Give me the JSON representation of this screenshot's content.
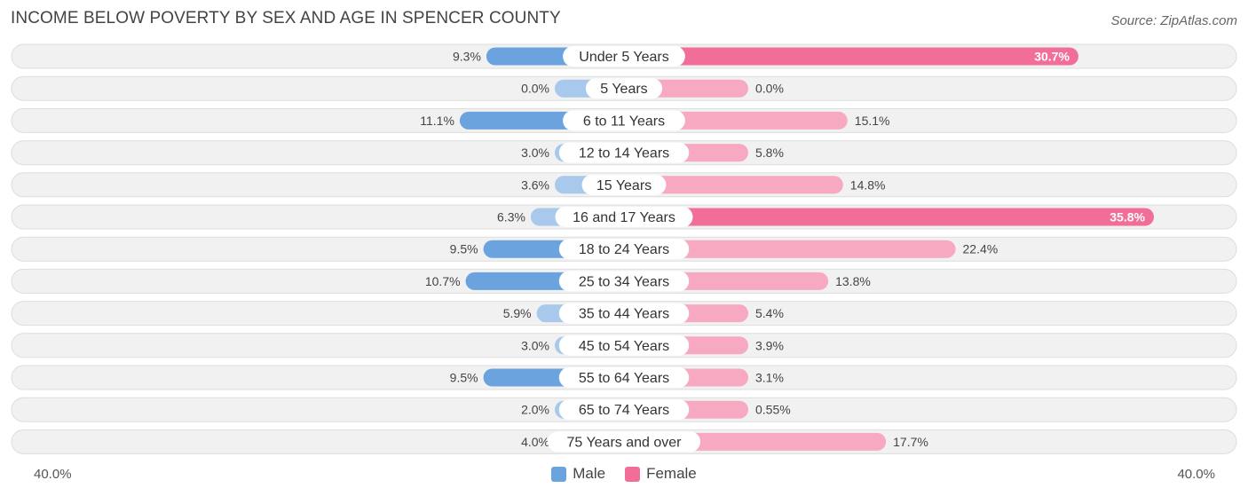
{
  "title": "INCOME BELOW POVERTY BY SEX AND AGE IN SPENCER COUNTY",
  "source": "Source: ZipAtlas.com",
  "axis": {
    "left_label": "40.0%",
    "right_label": "40.0%"
  },
  "legend": {
    "male": "Male",
    "female": "Female"
  },
  "colors": {
    "male_strong": "#6aa3de",
    "male_light": "#a8c9eb",
    "female_strong": "#f06e98",
    "female_light": "#f6a9c1",
    "row_bg": "#f1f1f1",
    "row_border": "#dddddd"
  },
  "chart_data": {
    "type": "bar",
    "orientation": "horizontal-diverging",
    "title": "INCOME BELOW POVERTY BY SEX AND AGE IN SPENCER COUNTY",
    "xlim": [
      -40,
      40
    ],
    "categories": [
      "Under 5 Years",
      "5 Years",
      "6 to 11 Years",
      "12 to 14 Years",
      "15 Years",
      "16 and 17 Years",
      "18 to 24 Years",
      "25 to 34 Years",
      "35 to 44 Years",
      "45 to 54 Years",
      "55 to 64 Years",
      "65 to 74 Years",
      "75 Years and over"
    ],
    "series": [
      {
        "name": "Male",
        "values": [
          9.3,
          0.0,
          11.1,
          3.0,
          3.6,
          6.3,
          9.5,
          10.7,
          5.9,
          3.0,
          9.5,
          2.0,
          4.0
        ],
        "labels": [
          "9.3%",
          "0.0%",
          "11.1%",
          "3.0%",
          "3.6%",
          "6.3%",
          "9.5%",
          "10.7%",
          "5.9%",
          "3.0%",
          "9.5%",
          "2.0%",
          "4.0%"
        ]
      },
      {
        "name": "Female",
        "values": [
          30.7,
          0.0,
          15.1,
          5.8,
          14.8,
          35.8,
          22.4,
          13.8,
          5.4,
          3.9,
          3.1,
          0.55,
          17.7
        ],
        "labels": [
          "30.7%",
          "0.0%",
          "15.1%",
          "5.8%",
          "14.8%",
          "35.8%",
          "22.4%",
          "13.8%",
          "5.4%",
          "3.9%",
          "3.1%",
          "0.55%",
          "17.7%"
        ]
      }
    ]
  }
}
